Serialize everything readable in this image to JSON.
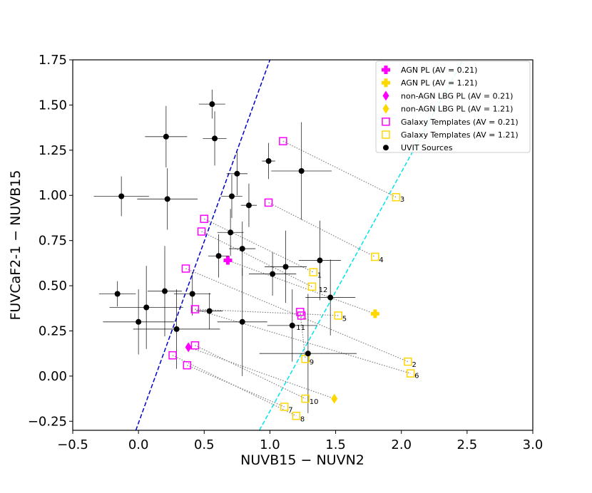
{
  "chart_data": {
    "type": "scatter",
    "xlabel": "NUVB15 − NUVN2",
    "ylabel": "FUVCaF2-1 − NUVB15",
    "xlim": [
      -0.5,
      3.0
    ],
    "ylim": [
      -0.3,
      1.75
    ],
    "xticks": [
      -0.5,
      0.0,
      0.5,
      1.0,
      1.5,
      2.0,
      2.5,
      3.0
    ],
    "xtick_labels": [
      "−0.5",
      "0.0",
      "0.5",
      "1.0",
      "1.5",
      "2.0",
      "2.5",
      "3.0"
    ],
    "yticks": [
      -0.25,
      0.0,
      0.25,
      0.5,
      0.75,
      1.0,
      1.25,
      1.5,
      1.75
    ],
    "ytick_labels": [
      "−0.25",
      "0.00",
      "0.25",
      "0.50",
      "0.75",
      "1.00",
      "1.25",
      "1.50",
      "1.75"
    ],
    "grid": false,
    "legend_position": "upper-right",
    "colors": {
      "magenta": "#ff00ff",
      "gold": "#ffd700",
      "black": "#000000",
      "blue_line": "#0000cd",
      "cyan_line": "#00e5ee",
      "connector": "#808080"
    },
    "legend": [
      {
        "marker": "plus",
        "color": "#ff00ff",
        "text": "AGN PL (AV = 0.21)"
      },
      {
        "marker": "plus",
        "color": "#ffd700",
        "text": "AGN PL (AV = 1.21)"
      },
      {
        "marker": "diamond",
        "color": "#ff00ff",
        "text": "non-AGN LBG PL (AV = 0.21)"
      },
      {
        "marker": "diamond",
        "color": "#ffd700",
        "text": "non-AGN LBG PL (AV = 1.21)"
      },
      {
        "marker": "square-open",
        "color": "#ff00ff",
        "text": "Galaxy Templates (AV = 0.21)"
      },
      {
        "marker": "square-open",
        "color": "#ffd700",
        "text": "Galaxy Templates (AV = 1.21)"
      },
      {
        "marker": "circle",
        "color": "#000000",
        "text": "UVIT Sources"
      }
    ],
    "series": [
      {
        "name": "UVIT Sources",
        "points": [
          {
            "x": 0.56,
            "y": 1.505,
            "xerr": 0.1,
            "yerr": 0.08
          },
          {
            "x": 0.21,
            "y": 1.325,
            "xerr": 0.16,
            "yerr": 0.17
          },
          {
            "x": 0.58,
            "y": 1.315,
            "xerr": 0.09,
            "yerr": 0.15
          },
          {
            "x": -0.13,
            "y": 0.995,
            "xerr": 0.21,
            "yerr": 0.11
          },
          {
            "x": 0.22,
            "y": 0.98,
            "xerr": 0.23,
            "yerr": 0.17
          },
          {
            "x": 0.99,
            "y": 1.19,
            "xerr": 0.05,
            "yerr": 0.1
          },
          {
            "x": 1.24,
            "y": 1.135,
            "xerr": 0.23,
            "yerr": 0.27
          },
          {
            "x": 0.75,
            "y": 1.12,
            "xerr": 0.08,
            "yerr": 0.12
          },
          {
            "x": 0.71,
            "y": 0.995,
            "xerr": 0.08,
            "yerr": 0.12
          },
          {
            "x": 0.84,
            "y": 0.945,
            "xerr": 0.06,
            "yerr": 0.12
          },
          {
            "x": 0.7,
            "y": 0.795,
            "xerr": 0.1,
            "yerr": 0.13
          },
          {
            "x": 0.79,
            "y": 0.705,
            "xerr": 0.1,
            "yerr": 0.15
          },
          {
            "x": 0.61,
            "y": 0.665,
            "xerr": 0.08,
            "yerr": 0.12
          },
          {
            "x": 1.38,
            "y": 0.64,
            "xerr": 0.16,
            "yerr": 0.22
          },
          {
            "x": 1.12,
            "y": 0.605,
            "xerr": 0.16,
            "yerr": 0.2
          },
          {
            "x": 1.02,
            "y": 0.565,
            "xerr": 0.18,
            "yerr": 0.12
          },
          {
            "x": -0.16,
            "y": 0.455,
            "xerr": 0.14,
            "yerr": 0.07
          },
          {
            "x": 0.2,
            "y": 0.47,
            "xerr": 0.13,
            "yerr": 0.25
          },
          {
            "x": 0.41,
            "y": 0.455,
            "xerr": 0.14,
            "yerr": 0.12
          },
          {
            "x": 0.06,
            "y": 0.38,
            "xerr": 0.28,
            "yerr": 0.23
          },
          {
            "x": 1.46,
            "y": 0.435,
            "xerr": 0.19,
            "yerr": 0.21
          },
          {
            "x": 0.54,
            "y": 0.36,
            "xerr": 0.1,
            "yerr": 0.1
          },
          {
            "x": 0.0,
            "y": 0.3,
            "xerr": 0.27,
            "yerr": 0.18
          },
          {
            "x": 0.79,
            "y": 0.3,
            "xerr": 0.19,
            "yerr": 0.3
          },
          {
            "x": 0.29,
            "y": 0.26,
            "xerr": 0.33,
            "yerr": 0.22
          },
          {
            "x": 1.17,
            "y": 0.28,
            "xerr": 0.19,
            "yerr": 0.2
          },
          {
            "x": 1.29,
            "y": 0.125,
            "xerr": 0.37,
            "yerr": 0.33
          }
        ]
      },
      {
        "name": "Galaxy Templates (AV = 0.21)",
        "points": [
          {
            "x": 1.1,
            "y": 1.3
          },
          {
            "x": 0.99,
            "y": 0.96
          },
          {
            "x": 0.5,
            "y": 0.87
          },
          {
            "x": 0.48,
            "y": 0.8
          },
          {
            "x": 0.36,
            "y": 0.595
          },
          {
            "x": 0.43,
            "y": 0.37
          },
          {
            "x": 1.23,
            "y": 0.355
          },
          {
            "x": 1.24,
            "y": 0.335
          },
          {
            "x": 0.43,
            "y": 0.17
          },
          {
            "x": 0.26,
            "y": 0.115
          },
          {
            "x": 0.37,
            "y": 0.06
          }
        ]
      },
      {
        "name": "Galaxy Templates (AV = 1.21)",
        "points": [
          {
            "x": 1.96,
            "y": 0.99
          },
          {
            "x": 1.8,
            "y": 0.66
          },
          {
            "x": 1.33,
            "y": 0.575
          },
          {
            "x": 1.32,
            "y": 0.495
          },
          {
            "x": 1.52,
            "y": 0.335
          },
          {
            "x": 2.05,
            "y": 0.08
          },
          {
            "x": 2.07,
            "y": 0.015
          },
          {
            "x": 1.27,
            "y": 0.095
          },
          {
            "x": 1.27,
            "y": -0.125
          },
          {
            "x": 1.2,
            "y": -0.22
          },
          {
            "x": 1.11,
            "y": -0.17
          }
        ]
      },
      {
        "name": "AGN PL (AV = 0.21)",
        "points": [
          {
            "x": 0.68,
            "y": 0.64
          }
        ]
      },
      {
        "name": "AGN PL (AV = 1.21)",
        "points": [
          {
            "x": 1.8,
            "y": 0.345
          }
        ]
      },
      {
        "name": "non-AGN LBG PL (AV = 0.21)",
        "points": [
          {
            "x": 0.38,
            "y": 0.16
          }
        ]
      },
      {
        "name": "non-AGN LBG PL (AV = 1.21)",
        "points": [
          {
            "x": 1.49,
            "y": -0.125
          }
        ]
      }
    ],
    "connectors": [
      {
        "from": [
          1.1,
          1.3
        ],
        "to": [
          1.96,
          0.99
        ]
      },
      {
        "from": [
          0.99,
          0.96
        ],
        "to": [
          1.8,
          0.66
        ]
      },
      {
        "from": [
          0.5,
          0.87
        ],
        "to": [
          1.33,
          0.575
        ]
      },
      {
        "from": [
          0.48,
          0.8
        ],
        "to": [
          1.32,
          0.495
        ]
      },
      {
        "from": [
          0.36,
          0.595
        ],
        "to": [
          2.05,
          0.08
        ]
      },
      {
        "from": [
          0.43,
          0.37
        ],
        "to": [
          1.52,
          0.335
        ]
      },
      {
        "from": [
          0.43,
          0.37
        ],
        "to": [
          2.07,
          0.015
        ]
      },
      {
        "from": [
          1.23,
          0.355
        ],
        "to": [
          1.27,
          0.095
        ]
      },
      {
        "from": [
          0.43,
          0.17
        ],
        "to": [
          1.27,
          -0.125
        ]
      },
      {
        "from": [
          0.26,
          0.115
        ],
        "to": [
          1.2,
          -0.22
        ]
      },
      {
        "from": [
          0.37,
          0.06
        ],
        "to": [
          1.11,
          -0.17
        ]
      },
      {
        "from": [
          0.38,
          0.16
        ],
        "to": [
          1.49,
          -0.125
        ]
      },
      {
        "from": [
          0.68,
          0.64
        ],
        "to": [
          1.8,
          0.345
        ]
      }
    ],
    "point_labels": [
      {
        "text": "3",
        "x": 1.99,
        "y": 0.965
      },
      {
        "text": "4",
        "x": 1.83,
        "y": 0.63
      },
      {
        "text": "1",
        "x": 1.36,
        "y": 0.545
      },
      {
        "text": "12",
        "x": 1.37,
        "y": 0.465
      },
      {
        "text": "5",
        "x": 1.55,
        "y": 0.305
      },
      {
        "text": "11",
        "x": 1.2,
        "y": 0.255
      },
      {
        "text": "2",
        "x": 2.08,
        "y": 0.05
      },
      {
        "text": "6",
        "x": 2.1,
        "y": -0.01
      },
      {
        "text": "9",
        "x": 1.3,
        "y": 0.065
      },
      {
        "text": "10",
        "x": 1.3,
        "y": -0.155
      },
      {
        "text": "7",
        "x": 1.14,
        "y": -0.2
      },
      {
        "text": "8",
        "x": 1.23,
        "y": -0.25
      }
    ],
    "reference_lines": [
      {
        "color": "#0000cd",
        "style": "dashed",
        "from": [
          -0.02,
          -0.3
        ],
        "to": [
          1.0,
          1.75
        ]
      },
      {
        "color": "#00e5ee",
        "style": "dashed",
        "from": [
          0.92,
          -0.3
        ],
        "to": [
          2.47,
          1.75
        ]
      }
    ]
  }
}
